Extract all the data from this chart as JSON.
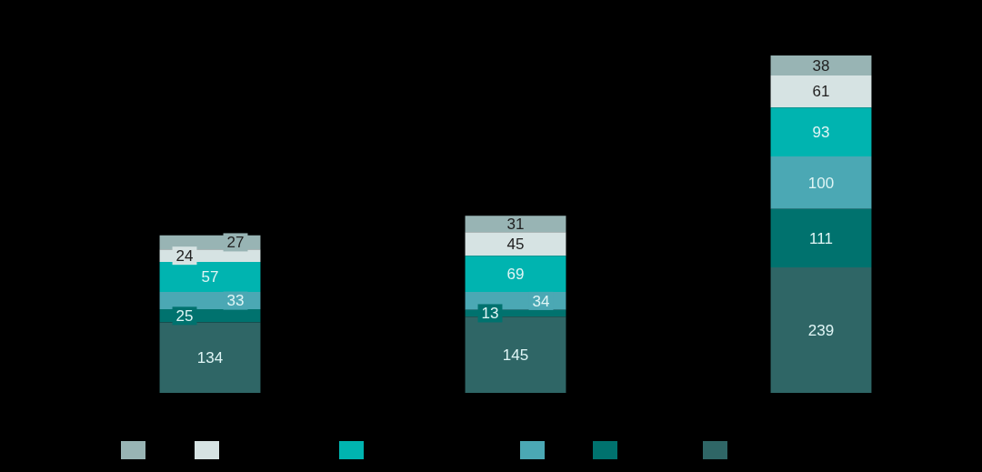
{
  "chart_data": {
    "type": "bar",
    "categories": [
      null,
      null,
      null
    ],
    "stacked": true,
    "series": [
      {
        "color": "#2f6666",
        "values": [
          134,
          145,
          239
        ]
      },
      {
        "color": "#00726e",
        "values": [
          25,
          13,
          111
        ]
      },
      {
        "color": "#4ba8b4",
        "values": [
          33,
          34,
          100
        ]
      },
      {
        "color": "#00b4b0",
        "values": [
          57,
          69,
          93
        ]
      },
      {
        "color": "#d6e3e3",
        "values": [
          24,
          45,
          61
        ]
      },
      {
        "color": "#98b4b4",
        "values": [
          27,
          31,
          38
        ]
      }
    ],
    "data_labels": true,
    "tick_labels": false
  }
}
